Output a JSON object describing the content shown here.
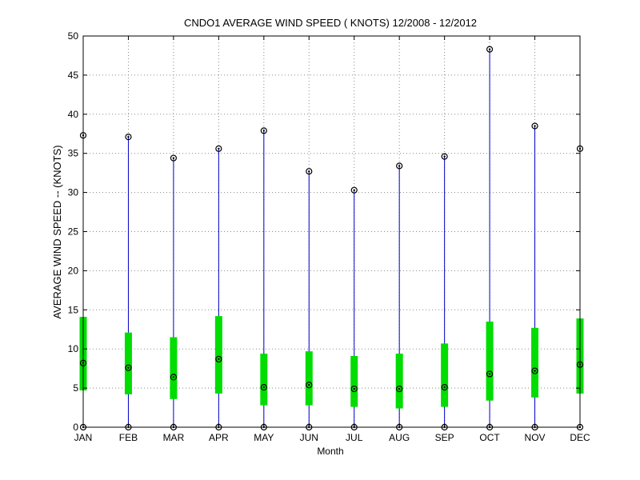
{
  "chart_data": {
    "type": "box",
    "title": "CNDO1  AVERAGE WIND SPEED ( KNOTS) 12/2008 - 12/2012",
    "xlabel": "Month",
    "ylabel": "AVERAGE WIND SPEED -- (KNOTS)",
    "categories": [
      "JAN",
      "FEB",
      "MAR",
      "APR",
      "MAY",
      "JUN",
      "JUL",
      "AUG",
      "SEP",
      "OCT",
      "NOV",
      "DEC"
    ],
    "ylim": [
      0,
      50
    ],
    "yticks": [
      0,
      5,
      10,
      15,
      20,
      25,
      30,
      35,
      40,
      45,
      50
    ],
    "grid": true,
    "min": [
      0,
      0,
      0,
      0,
      0,
      0,
      0,
      0,
      0,
      0,
      0,
      0
    ],
    "q1": [
      4.7,
      4.2,
      3.6,
      4.3,
      2.8,
      2.8,
      2.6,
      2.4,
      2.6,
      3.4,
      3.8,
      4.3
    ],
    "median": [
      8.2,
      7.6,
      6.4,
      8.7,
      5.1,
      5.4,
      4.9,
      4.9,
      5.1,
      6.8,
      7.2,
      8.0
    ],
    "q3": [
      14.1,
      12.1,
      11.5,
      14.2,
      9.4,
      9.7,
      9.1,
      9.4,
      10.7,
      13.5,
      12.7,
      13.9
    ],
    "max": [
      37.3,
      37.1,
      34.4,
      35.6,
      37.9,
      32.7,
      30.3,
      33.4,
      34.6,
      48.3,
      38.5,
      35.6
    ],
    "colors": {
      "whisker": "#0000cc",
      "box": "#00dd00",
      "marker": "#000000",
      "grid": "#888888"
    }
  }
}
